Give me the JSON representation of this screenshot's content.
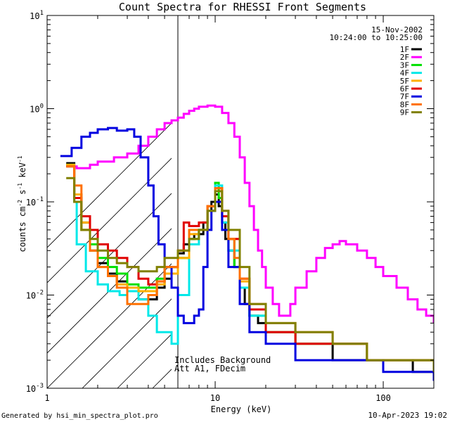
{
  "footer": {
    "generated_by": "Generated by hsi_min_spectra_plot.pro",
    "timestamp": "10-Apr-2023 19:02"
  },
  "chart_data": {
    "type": "line",
    "title": "Count Spectra for RHESSI Front Segments",
    "xlabel": "Energy (keV)",
    "ylabel": "counts cm^-2 s^-1 keV^-1",
    "xscale": "log",
    "yscale": "log",
    "xlim": [
      1,
      200
    ],
    "ylim": [
      0.001,
      10
    ],
    "x_ticks": [
      {
        "value": 1,
        "label": "1"
      },
      {
        "value": 10,
        "label": "10"
      },
      {
        "value": 100,
        "label": "100"
      }
    ],
    "y_ticks": [
      {
        "value": 10,
        "label": "10",
        "exp": "1"
      },
      {
        "value": 1,
        "label": "10",
        "exp": "0"
      },
      {
        "value": 0.1,
        "label": "10",
        "exp": "-1"
      },
      {
        "value": 0.01,
        "label": "10",
        "exp": "-2"
      },
      {
        "value": 0.001,
        "label": "10",
        "exp": "-3"
      }
    ],
    "attenuator_region_xmax": 6,
    "date": "15-Nov-2002",
    "time_range": "10:24:00 to 10:25:00",
    "annotations": [
      "Includes Background",
      "Att A1, FDecim"
    ],
    "legend_position": "top-right",
    "series": [
      {
        "name": "1F",
        "color": "#000000",
        "points": [
          [
            1.3,
            0.26
          ],
          [
            1.45,
            0.12
          ],
          [
            1.6,
            0.06
          ],
          [
            1.8,
            0.03
          ],
          [
            2.0,
            0.022
          ],
          [
            2.3,
            0.017
          ],
          [
            2.6,
            0.014
          ],
          [
            3.0,
            0.012
          ],
          [
            3.5,
            0.009
          ],
          [
            4.0,
            0.009
          ],
          [
            4.5,
            0.012
          ],
          [
            5.0,
            0.015
          ],
          [
            5.5,
            0.02
          ],
          [
            6.0,
            0.028
          ],
          [
            6.5,
            0.035
          ],
          [
            7.0,
            0.04
          ],
          [
            7.5,
            0.045
          ],
          [
            8.0,
            0.045
          ],
          [
            8.5,
            0.06
          ],
          [
            9.0,
            0.08
          ],
          [
            9.5,
            0.1
          ],
          [
            10.0,
            0.12
          ],
          [
            10.5,
            0.09
          ],
          [
            11.0,
            0.06
          ],
          [
            11.5,
            0.04
          ],
          [
            12.0,
            0.03
          ],
          [
            13.0,
            0.02
          ],
          [
            14.0,
            0.012
          ],
          [
            15.0,
            0.008
          ],
          [
            16.0,
            0.006
          ],
          [
            18.0,
            0.005
          ],
          [
            20.0,
            0.004
          ],
          [
            25.0,
            0.004
          ],
          [
            30.0,
            0.003
          ],
          [
            40.0,
            0.003
          ],
          [
            50.0,
            0.002
          ],
          [
            70.0,
            0.002
          ],
          [
            100.0,
            0.002
          ],
          [
            150.0,
            0.0015
          ],
          [
            200.0,
            0.0015
          ]
        ]
      },
      {
        "name": "2F",
        "color": "#ff00ff",
        "points": [
          [
            1.3,
            0.24
          ],
          [
            1.5,
            0.23
          ],
          [
            1.8,
            0.25
          ],
          [
            2.0,
            0.27
          ],
          [
            2.5,
            0.3
          ],
          [
            3.0,
            0.33
          ],
          [
            3.5,
            0.4
          ],
          [
            4.0,
            0.5
          ],
          [
            4.5,
            0.6
          ],
          [
            5.0,
            0.7
          ],
          [
            5.5,
            0.75
          ],
          [
            6.0,
            0.8
          ],
          [
            6.5,
            0.88
          ],
          [
            7.0,
            0.95
          ],
          [
            7.5,
            1.0
          ],
          [
            8.0,
            1.05
          ],
          [
            9.0,
            1.08
          ],
          [
            10.0,
            1.05
          ],
          [
            11.0,
            0.9
          ],
          [
            12.0,
            0.7
          ],
          [
            13.0,
            0.5
          ],
          [
            14.0,
            0.3
          ],
          [
            15.0,
            0.16
          ],
          [
            16.0,
            0.09
          ],
          [
            17.0,
            0.05
          ],
          [
            18.0,
            0.03
          ],
          [
            19.0,
            0.02
          ],
          [
            20.0,
            0.012
          ],
          [
            22.0,
            0.008
          ],
          [
            24.0,
            0.006
          ],
          [
            26.0,
            0.006
          ],
          [
            28.0,
            0.008
          ],
          [
            30.0,
            0.012
          ],
          [
            35.0,
            0.018
          ],
          [
            40.0,
            0.025
          ],
          [
            45.0,
            0.032
          ],
          [
            50.0,
            0.035
          ],
          [
            55.0,
            0.038
          ],
          [
            60.0,
            0.035
          ],
          [
            70.0,
            0.03
          ],
          [
            80.0,
            0.025
          ],
          [
            90.0,
            0.02
          ],
          [
            100.0,
            0.016
          ],
          [
            120.0,
            0.012
          ],
          [
            140.0,
            0.009
          ],
          [
            160.0,
            0.007
          ],
          [
            180.0,
            0.006
          ],
          [
            200.0,
            0.005
          ]
        ]
      },
      {
        "name": "3F",
        "color": "#00e000",
        "points": [
          [
            1.3,
            0.25
          ],
          [
            1.45,
            0.1
          ],
          [
            1.6,
            0.05
          ],
          [
            1.8,
            0.035
          ],
          [
            2.0,
            0.025
          ],
          [
            2.3,
            0.02
          ],
          [
            2.6,
            0.017
          ],
          [
            3.0,
            0.013
          ],
          [
            3.5,
            0.012
          ],
          [
            4.0,
            0.012
          ],
          [
            4.5,
            0.015
          ],
          [
            5.0,
            0.02
          ],
          [
            6.0,
            0.025
          ],
          [
            7.0,
            0.04
          ],
          [
            8.0,
            0.05
          ],
          [
            9.0,
            0.09
          ],
          [
            10.0,
            0.16
          ],
          [
            10.5,
            0.11
          ],
          [
            11.0,
            0.07
          ],
          [
            12.0,
            0.04
          ],
          [
            13.0,
            0.02
          ],
          [
            14.0,
            0.012
          ],
          [
            16.0,
            0.006
          ],
          [
            20.0,
            0.004
          ],
          [
            30.0,
            0.003
          ],
          [
            50.0,
            0.003
          ],
          [
            80.0,
            0.002
          ],
          [
            120.0,
            0.002
          ],
          [
            200.0,
            0.0015
          ]
        ]
      },
      {
        "name": "4F",
        "color": "#00e8e8",
        "points": [
          [
            1.3,
            0.24
          ],
          [
            1.45,
            0.1
          ],
          [
            1.5,
            0.035
          ],
          [
            1.7,
            0.018
          ],
          [
            2.0,
            0.013
          ],
          [
            2.3,
            0.011
          ],
          [
            2.7,
            0.01
          ],
          [
            3.0,
            0.011
          ],
          [
            3.5,
            0.009
          ],
          [
            4.0,
            0.006
          ],
          [
            4.5,
            0.004
          ],
          [
            5.0,
            0.004
          ],
          [
            5.5,
            0.003
          ],
          [
            6.0,
            0.01
          ],
          [
            7.0,
            0.035
          ],
          [
            8.0,
            0.05
          ],
          [
            9.0,
            0.08
          ],
          [
            10.0,
            0.15
          ],
          [
            11.0,
            0.06
          ],
          [
            12.0,
            0.03
          ],
          [
            14.0,
            0.012
          ],
          [
            16.0,
            0.006
          ],
          [
            20.0,
            0.004
          ],
          [
            30.0,
            0.003
          ],
          [
            50.0,
            0.003
          ],
          [
            80.0,
            0.002
          ],
          [
            200.0,
            0.0015
          ]
        ]
      },
      {
        "name": "5F",
        "color": "#ffb000",
        "points": [
          [
            1.3,
            0.25
          ],
          [
            1.45,
            0.12
          ],
          [
            1.6,
            0.06
          ],
          [
            1.8,
            0.03
          ],
          [
            2.0,
            0.02
          ],
          [
            2.3,
            0.016
          ],
          [
            2.6,
            0.013
          ],
          [
            3.0,
            0.012
          ],
          [
            3.5,
            0.011
          ],
          [
            4.0,
            0.011
          ],
          [
            4.5,
            0.013
          ],
          [
            5.0,
            0.017
          ],
          [
            6.0,
            0.025
          ],
          [
            7.0,
            0.045
          ],
          [
            8.0,
            0.05
          ],
          [
            9.0,
            0.09
          ],
          [
            10.0,
            0.14
          ],
          [
            11.0,
            0.07
          ],
          [
            12.0,
            0.04
          ],
          [
            14.0,
            0.014
          ],
          [
            16.0,
            0.007
          ],
          [
            20.0,
            0.004
          ],
          [
            30.0,
            0.003
          ],
          [
            50.0,
            0.003
          ],
          [
            80.0,
            0.002
          ],
          [
            200.0,
            0.0015
          ]
        ]
      },
      {
        "name": "6F",
        "color": "#e00000",
        "points": [
          [
            1.3,
            0.24
          ],
          [
            1.45,
            0.11
          ],
          [
            1.6,
            0.07
          ],
          [
            1.8,
            0.05
          ],
          [
            2.0,
            0.035
          ],
          [
            2.3,
            0.03
          ],
          [
            2.6,
            0.025
          ],
          [
            3.0,
            0.02
          ],
          [
            3.5,
            0.015
          ],
          [
            4.0,
            0.013
          ],
          [
            4.5,
            0.014
          ],
          [
            5.0,
            0.02
          ],
          [
            6.0,
            0.03
          ],
          [
            6.5,
            0.06
          ],
          [
            7.0,
            0.055
          ],
          [
            8.0,
            0.06
          ],
          [
            9.0,
            0.09
          ],
          [
            10.0,
            0.14
          ],
          [
            11.0,
            0.07
          ],
          [
            12.0,
            0.04
          ],
          [
            14.0,
            0.015
          ],
          [
            16.0,
            0.007
          ],
          [
            20.0,
            0.004
          ],
          [
            30.0,
            0.003
          ],
          [
            50.0,
            0.003
          ],
          [
            80.0,
            0.002
          ],
          [
            200.0,
            0.0015
          ]
        ]
      },
      {
        "name": "7F",
        "color": "#0000e0",
        "points": [
          [
            1.2,
            0.31
          ],
          [
            1.4,
            0.38
          ],
          [
            1.6,
            0.5
          ],
          [
            1.8,
            0.55
          ],
          [
            2.0,
            0.6
          ],
          [
            2.3,
            0.62
          ],
          [
            2.6,
            0.58
          ],
          [
            3.0,
            0.6
          ],
          [
            3.3,
            0.5
          ],
          [
            3.6,
            0.3
          ],
          [
            4.0,
            0.15
          ],
          [
            4.3,
            0.07
          ],
          [
            4.6,
            0.035
          ],
          [
            5.0,
            0.02
          ],
          [
            5.5,
            0.012
          ],
          [
            6.0,
            0.006
          ],
          [
            6.5,
            0.005
          ],
          [
            7.0,
            0.005
          ],
          [
            7.5,
            0.006
          ],
          [
            8.0,
            0.007
          ],
          [
            8.5,
            0.02
          ],
          [
            9.0,
            0.05
          ],
          [
            9.5,
            0.08
          ],
          [
            10.0,
            0.1
          ],
          [
            11.0,
            0.05
          ],
          [
            12.0,
            0.02
          ],
          [
            14.0,
            0.008
          ],
          [
            16.0,
            0.004
          ],
          [
            20.0,
            0.003
          ],
          [
            30.0,
            0.002
          ],
          [
            50.0,
            0.002
          ],
          [
            100.0,
            0.0015
          ],
          [
            200.0,
            0.0012
          ]
        ]
      },
      {
        "name": "8F",
        "color": "#ff7000",
        "points": [
          [
            1.3,
            0.24
          ],
          [
            1.45,
            0.15
          ],
          [
            1.6,
            0.05
          ],
          [
            1.8,
            0.03
          ],
          [
            2.0,
            0.02
          ],
          [
            2.3,
            0.016
          ],
          [
            2.6,
            0.012
          ],
          [
            3.0,
            0.008
          ],
          [
            3.5,
            0.008
          ],
          [
            4.0,
            0.01
          ],
          [
            4.5,
            0.014
          ],
          [
            5.0,
            0.02
          ],
          [
            6.0,
            0.03
          ],
          [
            7.0,
            0.05
          ],
          [
            8.0,
            0.05
          ],
          [
            9.0,
            0.09
          ],
          [
            10.0,
            0.14
          ],
          [
            11.0,
            0.08
          ],
          [
            12.0,
            0.04
          ],
          [
            13.0,
            0.025
          ],
          [
            14.0,
            0.015
          ],
          [
            16.0,
            0.008
          ],
          [
            20.0,
            0.005
          ],
          [
            30.0,
            0.004
          ],
          [
            50.0,
            0.003
          ],
          [
            80.0,
            0.002
          ],
          [
            200.0,
            0.0015
          ]
        ]
      },
      {
        "name": "9F",
        "color": "#808000",
        "points": [
          [
            1.3,
            0.18
          ],
          [
            1.45,
            0.1
          ],
          [
            1.6,
            0.05
          ],
          [
            1.8,
            0.04
          ],
          [
            2.0,
            0.03
          ],
          [
            2.3,
            0.025
          ],
          [
            2.6,
            0.022
          ],
          [
            3.0,
            0.02
          ],
          [
            3.5,
            0.018
          ],
          [
            4.0,
            0.018
          ],
          [
            4.5,
            0.02
          ],
          [
            5.0,
            0.025
          ],
          [
            6.0,
            0.03
          ],
          [
            7.0,
            0.04
          ],
          [
            8.0,
            0.05
          ],
          [
            9.0,
            0.08
          ],
          [
            10.0,
            0.13
          ],
          [
            11.0,
            0.08
          ],
          [
            12.0,
            0.05
          ],
          [
            14.0,
            0.02
          ],
          [
            16.0,
            0.008
          ],
          [
            20.0,
            0.005
          ],
          [
            30.0,
            0.004
          ],
          [
            50.0,
            0.003
          ],
          [
            80.0,
            0.002
          ],
          [
            200.0,
            0.0015
          ]
        ]
      }
    ]
  }
}
